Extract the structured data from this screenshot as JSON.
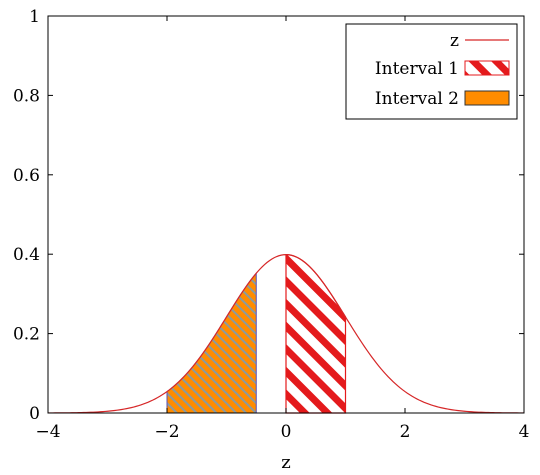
{
  "chart_data": {
    "type": "area",
    "xlabel": "z",
    "ylabel": "",
    "xlim": [
      -4,
      4
    ],
    "ylim": [
      0,
      1
    ],
    "x_ticks": [
      -4,
      -2,
      0,
      2,
      4
    ],
    "x_tick_labels": [
      "−4",
      "−2",
      "0",
      "2",
      "4"
    ],
    "y_ticks": [
      0,
      0.2,
      0.4,
      0.6,
      0.8,
      1
    ],
    "y_tick_labels": [
      "0",
      "0.2",
      "0.4",
      "0.6",
      "0.8",
      "1"
    ],
    "grid": false,
    "legend_position": "top-right",
    "curve": {
      "name": "z",
      "function": "standard normal density",
      "color": "#d62728",
      "x": [
        -4,
        -3.5,
        -3,
        -2.5,
        -2,
        -1.5,
        -1,
        -0.5,
        0,
        0.5,
        1,
        1.5,
        2,
        2.5,
        3,
        3.5,
        4
      ],
      "y": [
        0.0001,
        0.0009,
        0.0044,
        0.0175,
        0.054,
        0.1295,
        0.242,
        0.3521,
        0.3989,
        0.3521,
        0.242,
        0.1295,
        0.054,
        0.0175,
        0.0044,
        0.0009,
        0.0001
      ]
    },
    "series": [
      {
        "name": "Interval 1",
        "x_range": [
          0,
          1
        ],
        "fill": "hatched",
        "color": "#e41a1c"
      },
      {
        "name": "Interval 2",
        "x_range": [
          -2,
          -0.5
        ],
        "fill": "solid",
        "color": "#ff7f0e"
      }
    ]
  }
}
